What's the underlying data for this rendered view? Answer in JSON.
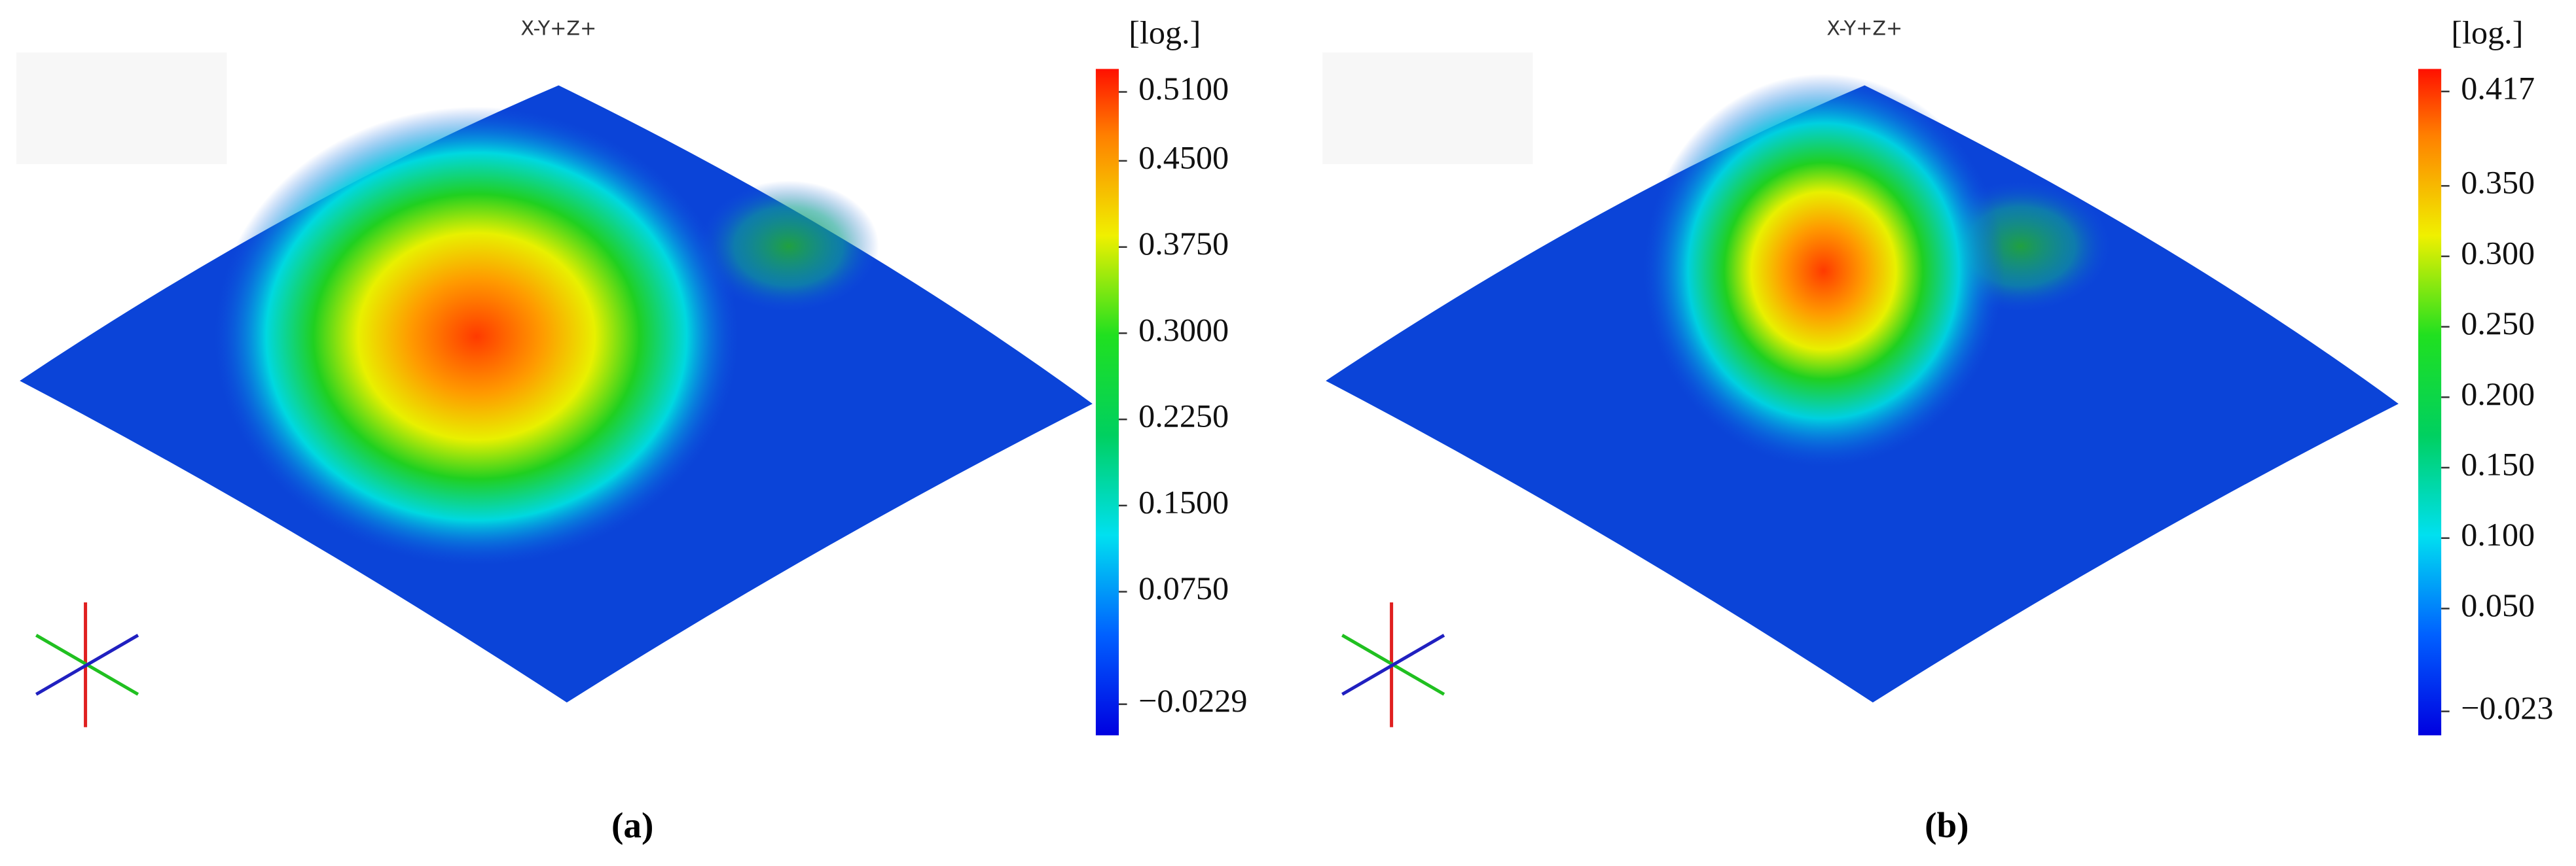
{
  "panels": [
    {
      "view": "X-Y+Z+",
      "unit": "[log.]",
      "caption": "(a)",
      "colorbar": {
        "range": [
          -0.05,
          0.53
        ],
        "ticks": [
          {
            "value": 0.51,
            "label": "0.5100"
          },
          {
            "value": 0.45,
            "label": "0.4500"
          },
          {
            "value": 0.375,
            "label": "0.3750"
          },
          {
            "value": 0.3,
            "label": "0.3000"
          },
          {
            "value": 0.225,
            "label": "0.2250"
          },
          {
            "value": 0.15,
            "label": "0.1500"
          },
          {
            "value": 0.075,
            "label": "0.0750"
          },
          {
            "value": -0.0229,
            "label": "−0.0229"
          }
        ]
      }
    },
    {
      "view": "X-Y+Z+",
      "unit": "[log.]",
      "caption": "(b)",
      "colorbar": {
        "range": [
          -0.04,
          0.433
        ],
        "ticks": [
          {
            "value": 0.417,
            "label": "0.417"
          },
          {
            "value": 0.35,
            "label": "0.350"
          },
          {
            "value": 0.3,
            "label": "0.300"
          },
          {
            "value": 0.25,
            "label": "0.250"
          },
          {
            "value": 0.2,
            "label": "0.200"
          },
          {
            "value": 0.15,
            "label": "0.150"
          },
          {
            "value": 0.1,
            "label": "0.100"
          },
          {
            "value": 0.05,
            "label": "0.050"
          },
          {
            "value": -0.023,
            "label": "−0.023"
          }
        ]
      }
    }
  ]
}
